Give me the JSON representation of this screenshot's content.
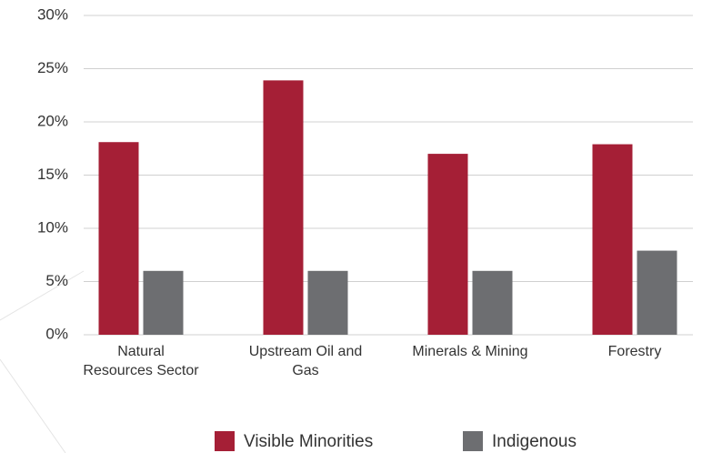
{
  "chart_data": {
    "type": "bar",
    "categories": [
      "Natural Resources Sector",
      "Upstream Oil and Gas",
      "Minerals & Mining",
      "Forestry"
    ],
    "series": [
      {
        "name": "Visible Minorities",
        "color": "#a51f36",
        "values": [
          18.1,
          23.9,
          17.0,
          17.9
        ]
      },
      {
        "name": "Indigenous",
        "color": "#6d6e71",
        "values": [
          6.0,
          6.0,
          6.0,
          7.9
        ]
      }
    ],
    "ylim": [
      0,
      30
    ],
    "yticks": [
      {
        "value": 0,
        "label": "0%"
      },
      {
        "value": 5,
        "label": "5%"
      },
      {
        "value": 10,
        "label": "10%"
      },
      {
        "value": 15,
        "label": "15%"
      },
      {
        "value": 20,
        "label": "20%"
      },
      {
        "value": 25,
        "label": "25%"
      },
      {
        "value": 30,
        "label": "30%"
      }
    ],
    "grid": true,
    "legend": "bottom"
  }
}
